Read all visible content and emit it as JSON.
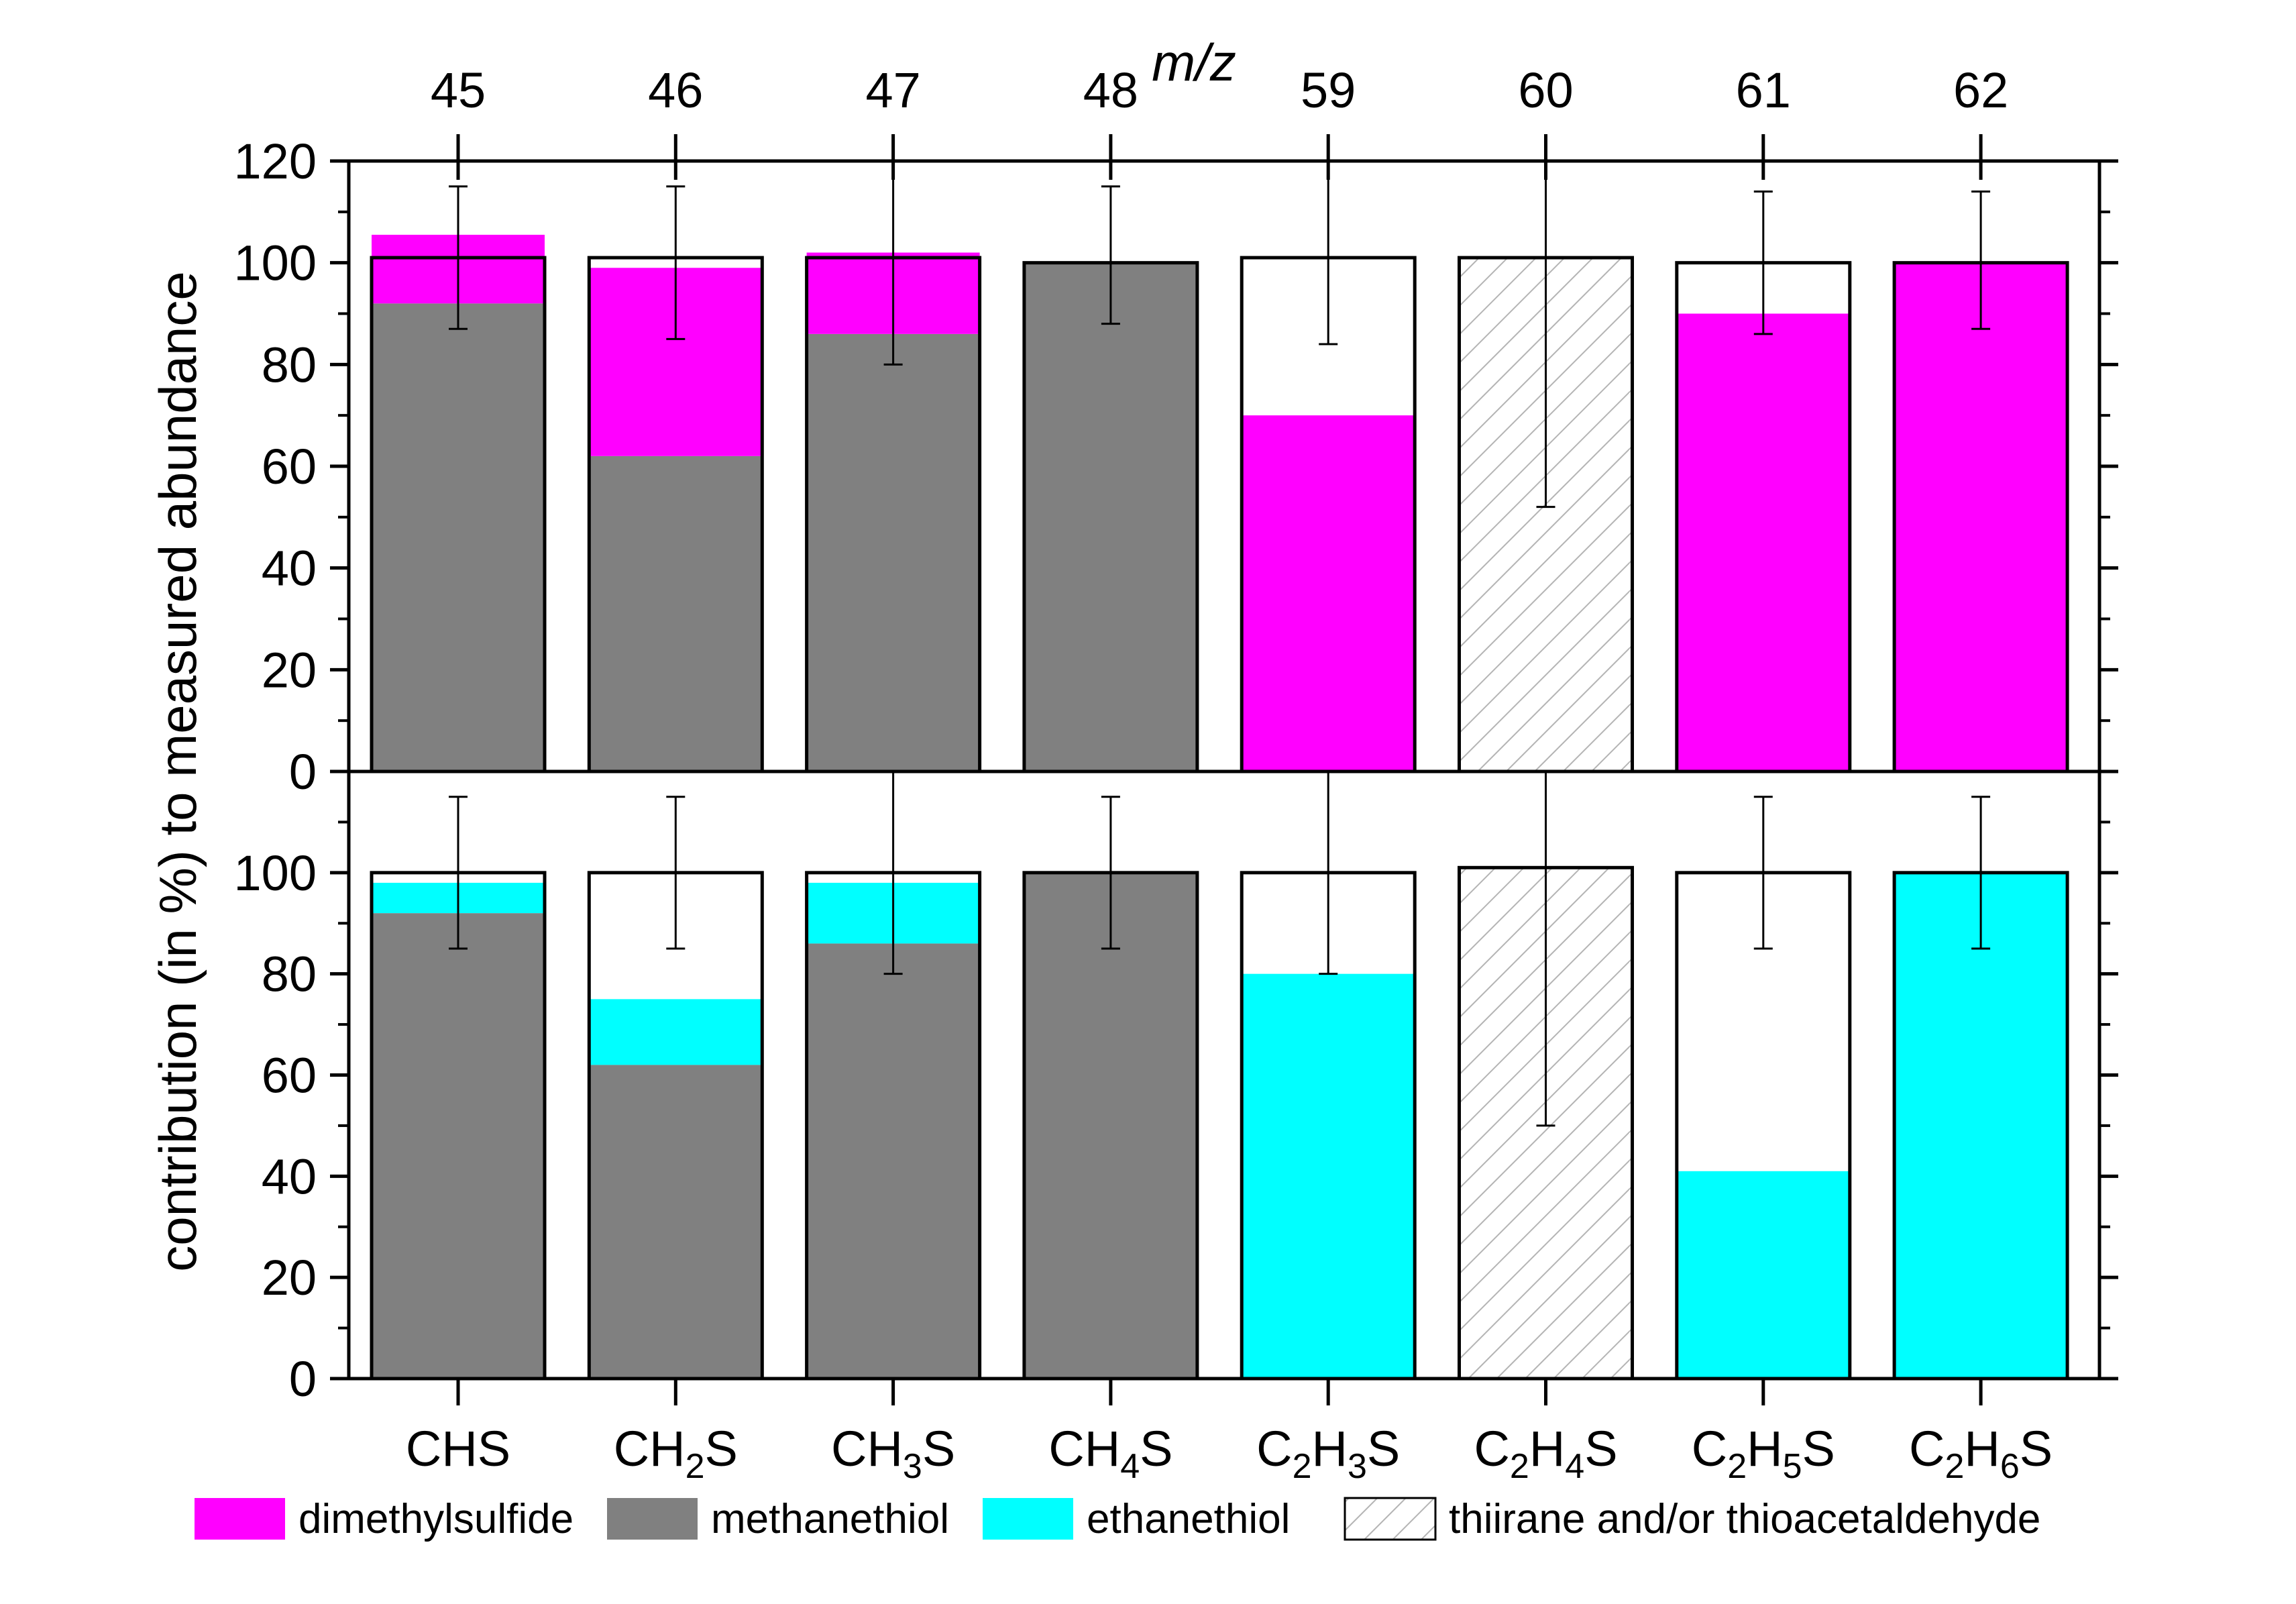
{
  "chart_data": {
    "type": "bar",
    "stacked": true,
    "top_axis_label": "m/z",
    "ylabel": "contribution (in %) to measured abundance",
    "ylim": [
      0,
      120
    ],
    "yticks": [
      0,
      20,
      40,
      60,
      80,
      100,
      120
    ],
    "mz_values": [
      "45",
      "46",
      "47",
      "48",
      "59",
      "60",
      "61",
      "62"
    ],
    "categories": [
      {
        "base": "CH",
        "parts": [
          {
            "t": "CH",
            "sub": false
          },
          {
            "t": "S",
            "sub": false
          }
        ],
        "text": "CHS"
      },
      {
        "parts": [
          {
            "t": "CH",
            "sub": false
          },
          {
            "t": "2",
            "sub": true
          },
          {
            "t": "S",
            "sub": false
          }
        ],
        "text": "CH2S"
      },
      {
        "parts": [
          {
            "t": "CH",
            "sub": false
          },
          {
            "t": "3",
            "sub": true
          },
          {
            "t": "S",
            "sub": false
          }
        ],
        "text": "CH3S"
      },
      {
        "parts": [
          {
            "t": "CH",
            "sub": false
          },
          {
            "t": "4",
            "sub": true
          },
          {
            "t": "S",
            "sub": false
          }
        ],
        "text": "CH4S"
      },
      {
        "parts": [
          {
            "t": "C",
            "sub": false
          },
          {
            "t": "2",
            "sub": true
          },
          {
            "t": "H",
            "sub": false
          },
          {
            "t": "3",
            "sub": true
          },
          {
            "t": "S",
            "sub": false
          }
        ],
        "text": "C2H3S"
      },
      {
        "parts": [
          {
            "t": "C",
            "sub": false
          },
          {
            "t": "2",
            "sub": true
          },
          {
            "t": "H",
            "sub": false
          },
          {
            "t": "4",
            "sub": true
          },
          {
            "t": "S",
            "sub": false
          }
        ],
        "text": "C2H4S"
      },
      {
        "parts": [
          {
            "t": "C",
            "sub": false
          },
          {
            "t": "2",
            "sub": true
          },
          {
            "t": "H",
            "sub": false
          },
          {
            "t": "5",
            "sub": true
          },
          {
            "t": "S",
            "sub": false
          }
        ],
        "text": "C2H5S"
      },
      {
        "parts": [
          {
            "t": "C",
            "sub": false
          },
          {
            "t": "2",
            "sub": true
          },
          {
            "t": "H",
            "sub": false
          },
          {
            "t": "6",
            "sub": true
          },
          {
            "t": "S",
            "sub": false
          }
        ],
        "text": "C2H6S"
      }
    ],
    "colors": {
      "dimethylsulfide": "#ff00ff",
      "methanethiol": "#808080",
      "ethanethiol": "#00ffff",
      "thiirane": "#c8c8c8",
      "outline": "#000000"
    },
    "legend": [
      {
        "key": "dimethylsulfide",
        "label": "dimethylsulfide"
      },
      {
        "key": "methanethiol",
        "label": "methanethiol"
      },
      {
        "key": "ethanethiol",
        "label": "ethanethiol"
      },
      {
        "key": "thiirane",
        "label": "thiirane and/or thioacetaldehyde",
        "hatched": true
      }
    ],
    "panels": [
      {
        "name": "top",
        "outline_totals": [
          101,
          101,
          101,
          100,
          101,
          101,
          100,
          100
        ],
        "series": [
          {
            "key": "methanethiol",
            "values": [
              92,
              62,
              86,
              100,
              0,
              0,
              0,
              0
            ]
          },
          {
            "key": "dimethylsulfide",
            "values": [
              13.5,
              37,
              16,
              0,
              70,
              0,
              90,
              100
            ]
          },
          {
            "key": "thiirane",
            "values": [
              0,
              0,
              0,
              0,
              0,
              101,
              0,
              0
            ],
            "hatched": true
          }
        ],
        "error_center": [
          101,
          100,
          101,
          101,
          101,
          101,
          100,
          100
        ],
        "error_low": [
          87,
          85,
          80,
          88,
          84,
          52,
          86,
          87
        ],
        "error_high": [
          115,
          115,
          122,
          115,
          121,
          122,
          114,
          114
        ]
      },
      {
        "name": "bottom",
        "outline_totals": [
          100,
          100,
          100,
          100,
          100,
          101,
          100,
          100
        ],
        "series": [
          {
            "key": "methanethiol",
            "values": [
              92,
              62,
              86,
              100,
              0,
              0,
              0,
              0
            ]
          },
          {
            "key": "ethanethiol",
            "values": [
              6,
              13,
              12,
              0,
              80,
              0,
              41,
              100
            ]
          },
          {
            "key": "thiirane",
            "values": [
              0,
              0,
              0,
              0,
              0,
              101,
              0,
              0
            ],
            "hatched": true
          }
        ],
        "error_center": [
          100,
          100,
          100,
          100,
          100,
          101,
          100,
          100
        ],
        "error_low": [
          85,
          85,
          80,
          85,
          80,
          50,
          85,
          85
        ],
        "error_high": [
          115,
          115,
          120,
          115,
          120,
          120,
          115,
          115
        ]
      }
    ]
  }
}
